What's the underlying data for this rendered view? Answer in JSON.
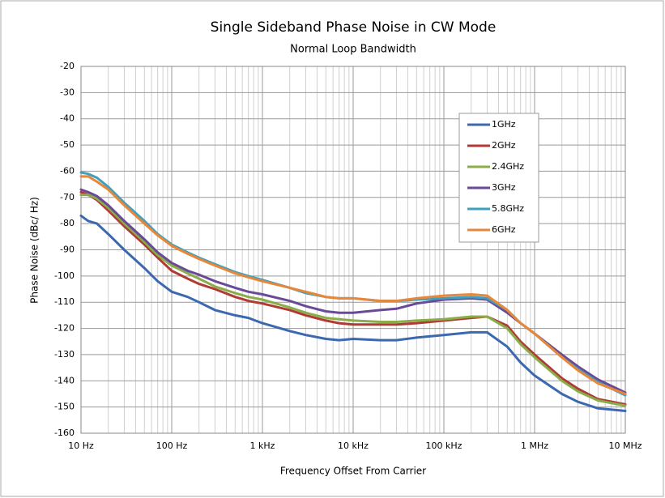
{
  "chart_data": {
    "type": "line",
    "title": "Single Sideband Phase Noise in CW Mode",
    "subtitle": "Normal Loop Bandwidth",
    "xlabel": "Frequency Offset From Carrier",
    "ylabel": "Phase Noise (dBc/ Hz)",
    "xscale": "log",
    "grid": true,
    "legend": "upper right",
    "xlim": [
      10,
      10000000
    ],
    "ylim": [
      -160,
      -20
    ],
    "xticks": [
      {
        "value": 10,
        "label": "10 Hz"
      },
      {
        "value": 100,
        "label": "100 Hz"
      },
      {
        "value": 1000,
        "label": "1 kHz"
      },
      {
        "value": 10000,
        "label": "10 kHz"
      },
      {
        "value": 100000,
        "label": "100 kHz"
      },
      {
        "value": 1000000,
        "label": "1 MHz"
      },
      {
        "value": 10000000,
        "label": "10 MHz"
      }
    ],
    "yticks": [
      -160,
      -150,
      -140,
      -130,
      -120,
      -110,
      -100,
      -90,
      -80,
      -70,
      -60,
      -50,
      -40,
      -30,
      -20
    ],
    "x": [
      10,
      12,
      15,
      20,
      30,
      50,
      70,
      100,
      150,
      200,
      300,
      500,
      700,
      1000,
      2000,
      3000,
      5000,
      7000,
      10000,
      20000,
      30000,
      50000,
      100000,
      200000,
      300000,
      500000,
      700000,
      1000000,
      2000000,
      3000000,
      5000000,
      10000000
    ],
    "series": [
      {
        "name": "1GHz",
        "color": "#3c68b0",
        "values": [
          -77,
          -79,
          -80,
          -84,
          -90,
          -97,
          -102,
          -106,
          -108,
          -110,
          -113,
          -115,
          -116,
          -118,
          -121,
          -122.5,
          -124,
          -124.5,
          -124,
          -124.5,
          -124.5,
          -123.5,
          -122.5,
          -121.5,
          -121.5,
          -127,
          -133,
          -138,
          -145,
          -148,
          -150.5,
          -151.5
        ]
      },
      {
        "name": "2GHz",
        "color": "#b03a34",
        "values": [
          -68,
          -69,
          -71,
          -75,
          -81,
          -88,
          -93,
          -98,
          -101,
          -103,
          -105,
          -108,
          -109.5,
          -110.5,
          -113,
          -115,
          -117,
          -118,
          -118.5,
          -118.5,
          -118.5,
          -118,
          -117,
          -116,
          -115.5,
          -119,
          -125,
          -130,
          -139,
          -143,
          -147,
          -149
        ]
      },
      {
        "name": "2.4GHz",
        "color": "#8aad4a",
        "values": [
          -69,
          -69,
          -70.5,
          -74,
          -80,
          -87,
          -92,
          -96,
          -99,
          -101,
          -104,
          -106.5,
          -108,
          -109,
          -112,
          -114,
          -116,
          -116.5,
          -117,
          -117.5,
          -117.5,
          -117,
          -116.5,
          -115.5,
          -115.5,
          -120,
          -126,
          -131,
          -140,
          -144,
          -147.5,
          -149.5
        ]
      },
      {
        "name": "3GHz",
        "color": "#6a4a98",
        "values": [
          -67,
          -68,
          -69.5,
          -73,
          -79,
          -86,
          -91,
          -95,
          -98,
          -99.5,
          -102,
          -104.5,
          -106,
          -107,
          -109.5,
          -111.5,
          -113.5,
          -114,
          -114,
          -113,
          -112.5,
          -110.5,
          -109,
          -108.5,
          -109,
          -114,
          -118,
          -122,
          -130,
          -134.5,
          -139.5,
          -144.5
        ]
      },
      {
        "name": "5.8GHz",
        "color": "#3fa0bd",
        "values": [
          -60.5,
          -61,
          -62.5,
          -66,
          -72,
          -79,
          -84,
          -88,
          -91,
          -93,
          -95.5,
          -98.5,
          -100,
          -101.5,
          -104.5,
          -106.5,
          -108,
          -108.5,
          -108.5,
          -109.5,
          -109.5,
          -109,
          -108.5,
          -108,
          -108.5,
          -113,
          -118,
          -122,
          -131,
          -135.5,
          -140.5,
          -145.5
        ]
      },
      {
        "name": "6GHz",
        "color": "#e8873a",
        "values": [
          -62,
          -62,
          -64,
          -67,
          -73,
          -80,
          -84.5,
          -88.5,
          -91.5,
          -93.5,
          -96,
          -99,
          -100.5,
          -102,
          -104.5,
          -106,
          -108,
          -108.5,
          -108.5,
          -109.5,
          -109.5,
          -108.5,
          -107.5,
          -107,
          -107.5,
          -113,
          -118,
          -122,
          -131,
          -136,
          -141,
          -145
        ]
      }
    ]
  }
}
